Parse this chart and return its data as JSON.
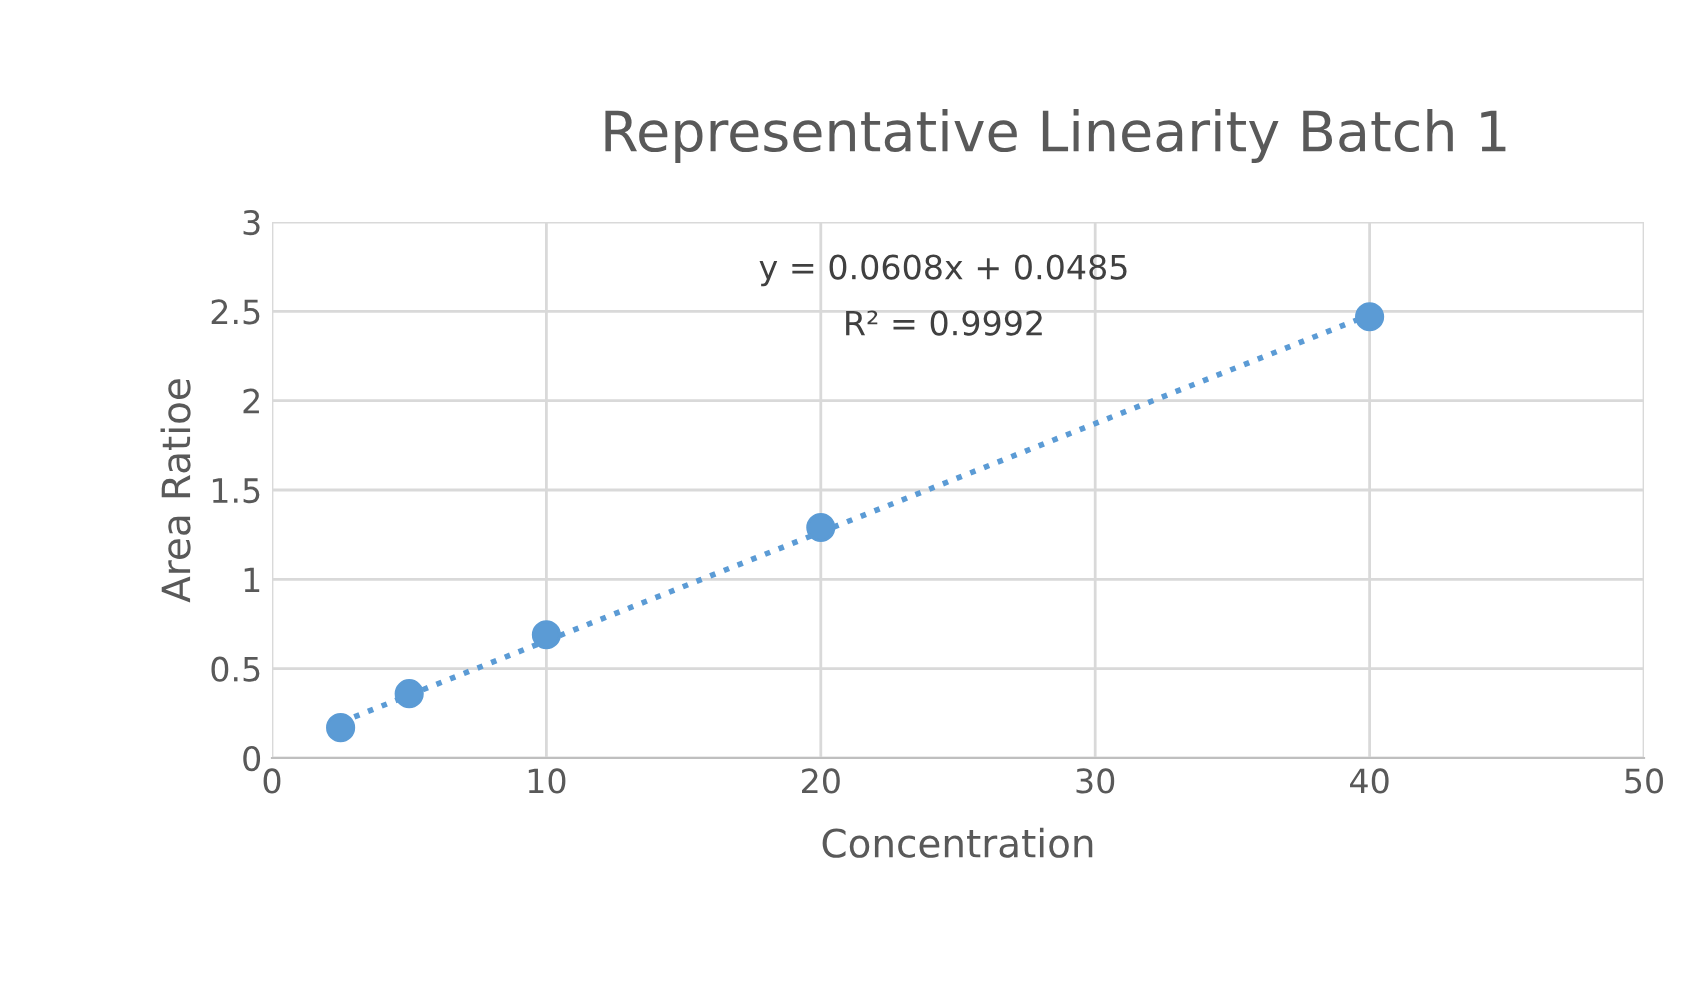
{
  "chart_data": {
    "type": "scatter",
    "title": "Representative Linearity Batch 1",
    "xlabel": "Concentration",
    "ylabel": "Area Ratioe",
    "series": [
      {
        "color": "#5b9bd5",
        "x": [
          2.5,
          5,
          10,
          20,
          40
        ],
        "values": [
          0.17,
          0.36,
          0.69,
          1.29,
          2.47
        ],
        "marker": "circle"
      },
      {
        "type": "line",
        "color": "#5b9bd5",
        "x": [
          2.5,
          40
        ],
        "values": [
          0.2,
          2.48
        ],
        "line_style": "dotted",
        "marker": "none"
      }
    ],
    "annotations": [
      "y = 0.0608x + 0.0485",
      "R² = 0.9992"
    ],
    "xlim": [
      0,
      50
    ],
    "xticks": [
      0,
      10,
      20,
      30,
      40,
      50
    ],
    "ylim": [
      0,
      3
    ],
    "yticks": [
      0,
      0.5,
      1,
      1.5,
      2,
      2.5,
      3
    ],
    "grid": true,
    "legend": false
  }
}
